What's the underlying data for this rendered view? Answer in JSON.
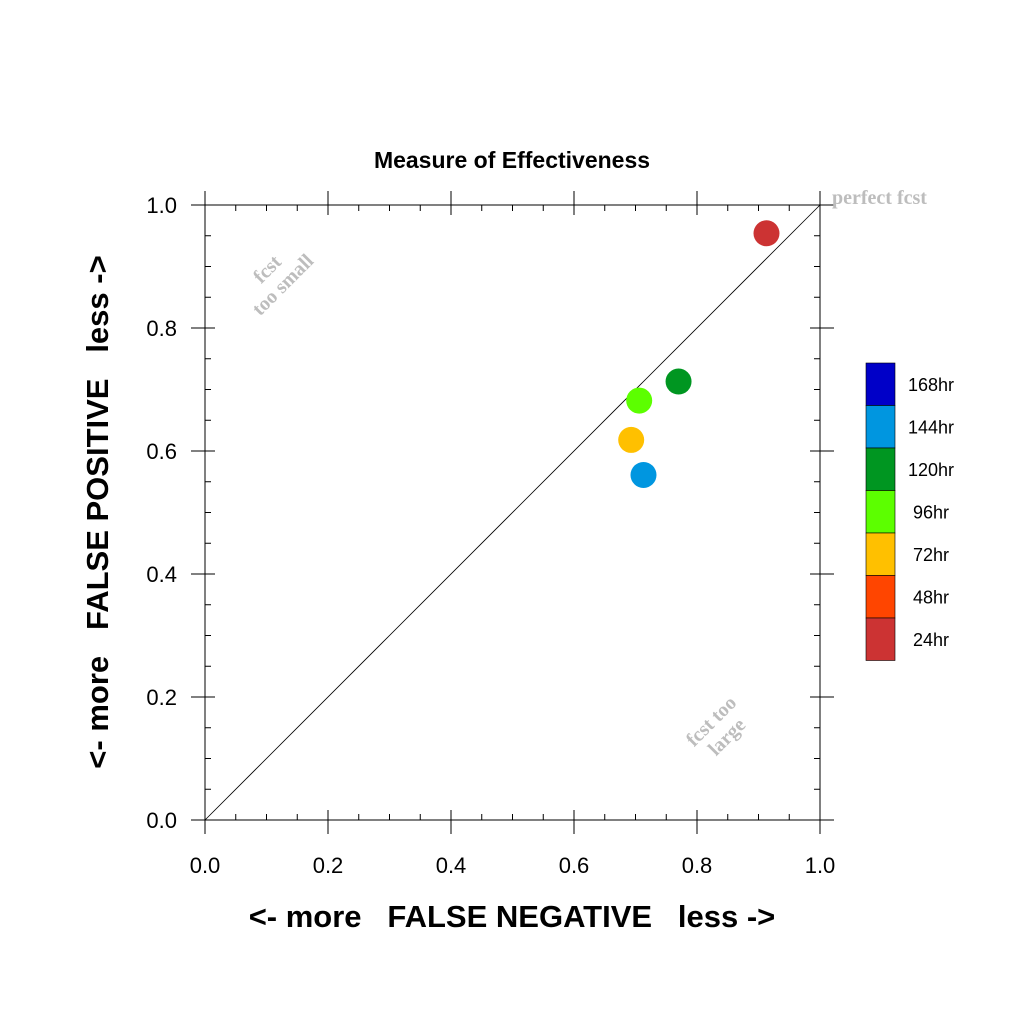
{
  "chart_data": {
    "type": "scatter",
    "title": "Measure of Effectiveness",
    "xlabel": "<- more   FALSE NEGATIVE   less ->",
    "ylabel": "<- more   FALSE POSITIVE   less ->",
    "xlim": [
      0.0,
      1.0
    ],
    "ylim": [
      0.0,
      1.0
    ],
    "xticks": [
      "0.0",
      "0.2",
      "0.4",
      "0.6",
      "0.8",
      "1.0"
    ],
    "yticks": [
      "0.0",
      "0.2",
      "0.4",
      "0.6",
      "0.8",
      "1.0"
    ],
    "reference_line": "diagonal y = x",
    "annotations": {
      "perfect": "perfect fcst",
      "small_1": "fcst",
      "small_2": "too small",
      "large_1": "fcst too",
      "large_2": "large"
    },
    "points": [
      {
        "x": 0.913,
        "y": 0.954,
        "color": "#cc3333"
      },
      {
        "x": 0.77,
        "y": 0.713,
        "color": "#009621"
      },
      {
        "x": 0.706,
        "y": 0.682,
        "color": "#5cff00"
      },
      {
        "x": 0.693,
        "y": 0.618,
        "color": "#ffc000"
      },
      {
        "x": 0.713,
        "y": 0.561,
        "color": "#0096e0"
      }
    ],
    "legend": {
      "placement": "right",
      "entries": [
        {
          "label": "168hr",
          "color": "#0000c8"
        },
        {
          "label": "144hr",
          "color": "#0096e0"
        },
        {
          "label": "120hr",
          "color": "#009621"
        },
        {
          "label": "96hr",
          "color": "#5cff00"
        },
        {
          "label": "72hr",
          "color": "#ffc000"
        },
        {
          "label": "48hr",
          "color": "#ff4500"
        },
        {
          "label": "24hr",
          "color": "#cc3333"
        }
      ]
    }
  }
}
